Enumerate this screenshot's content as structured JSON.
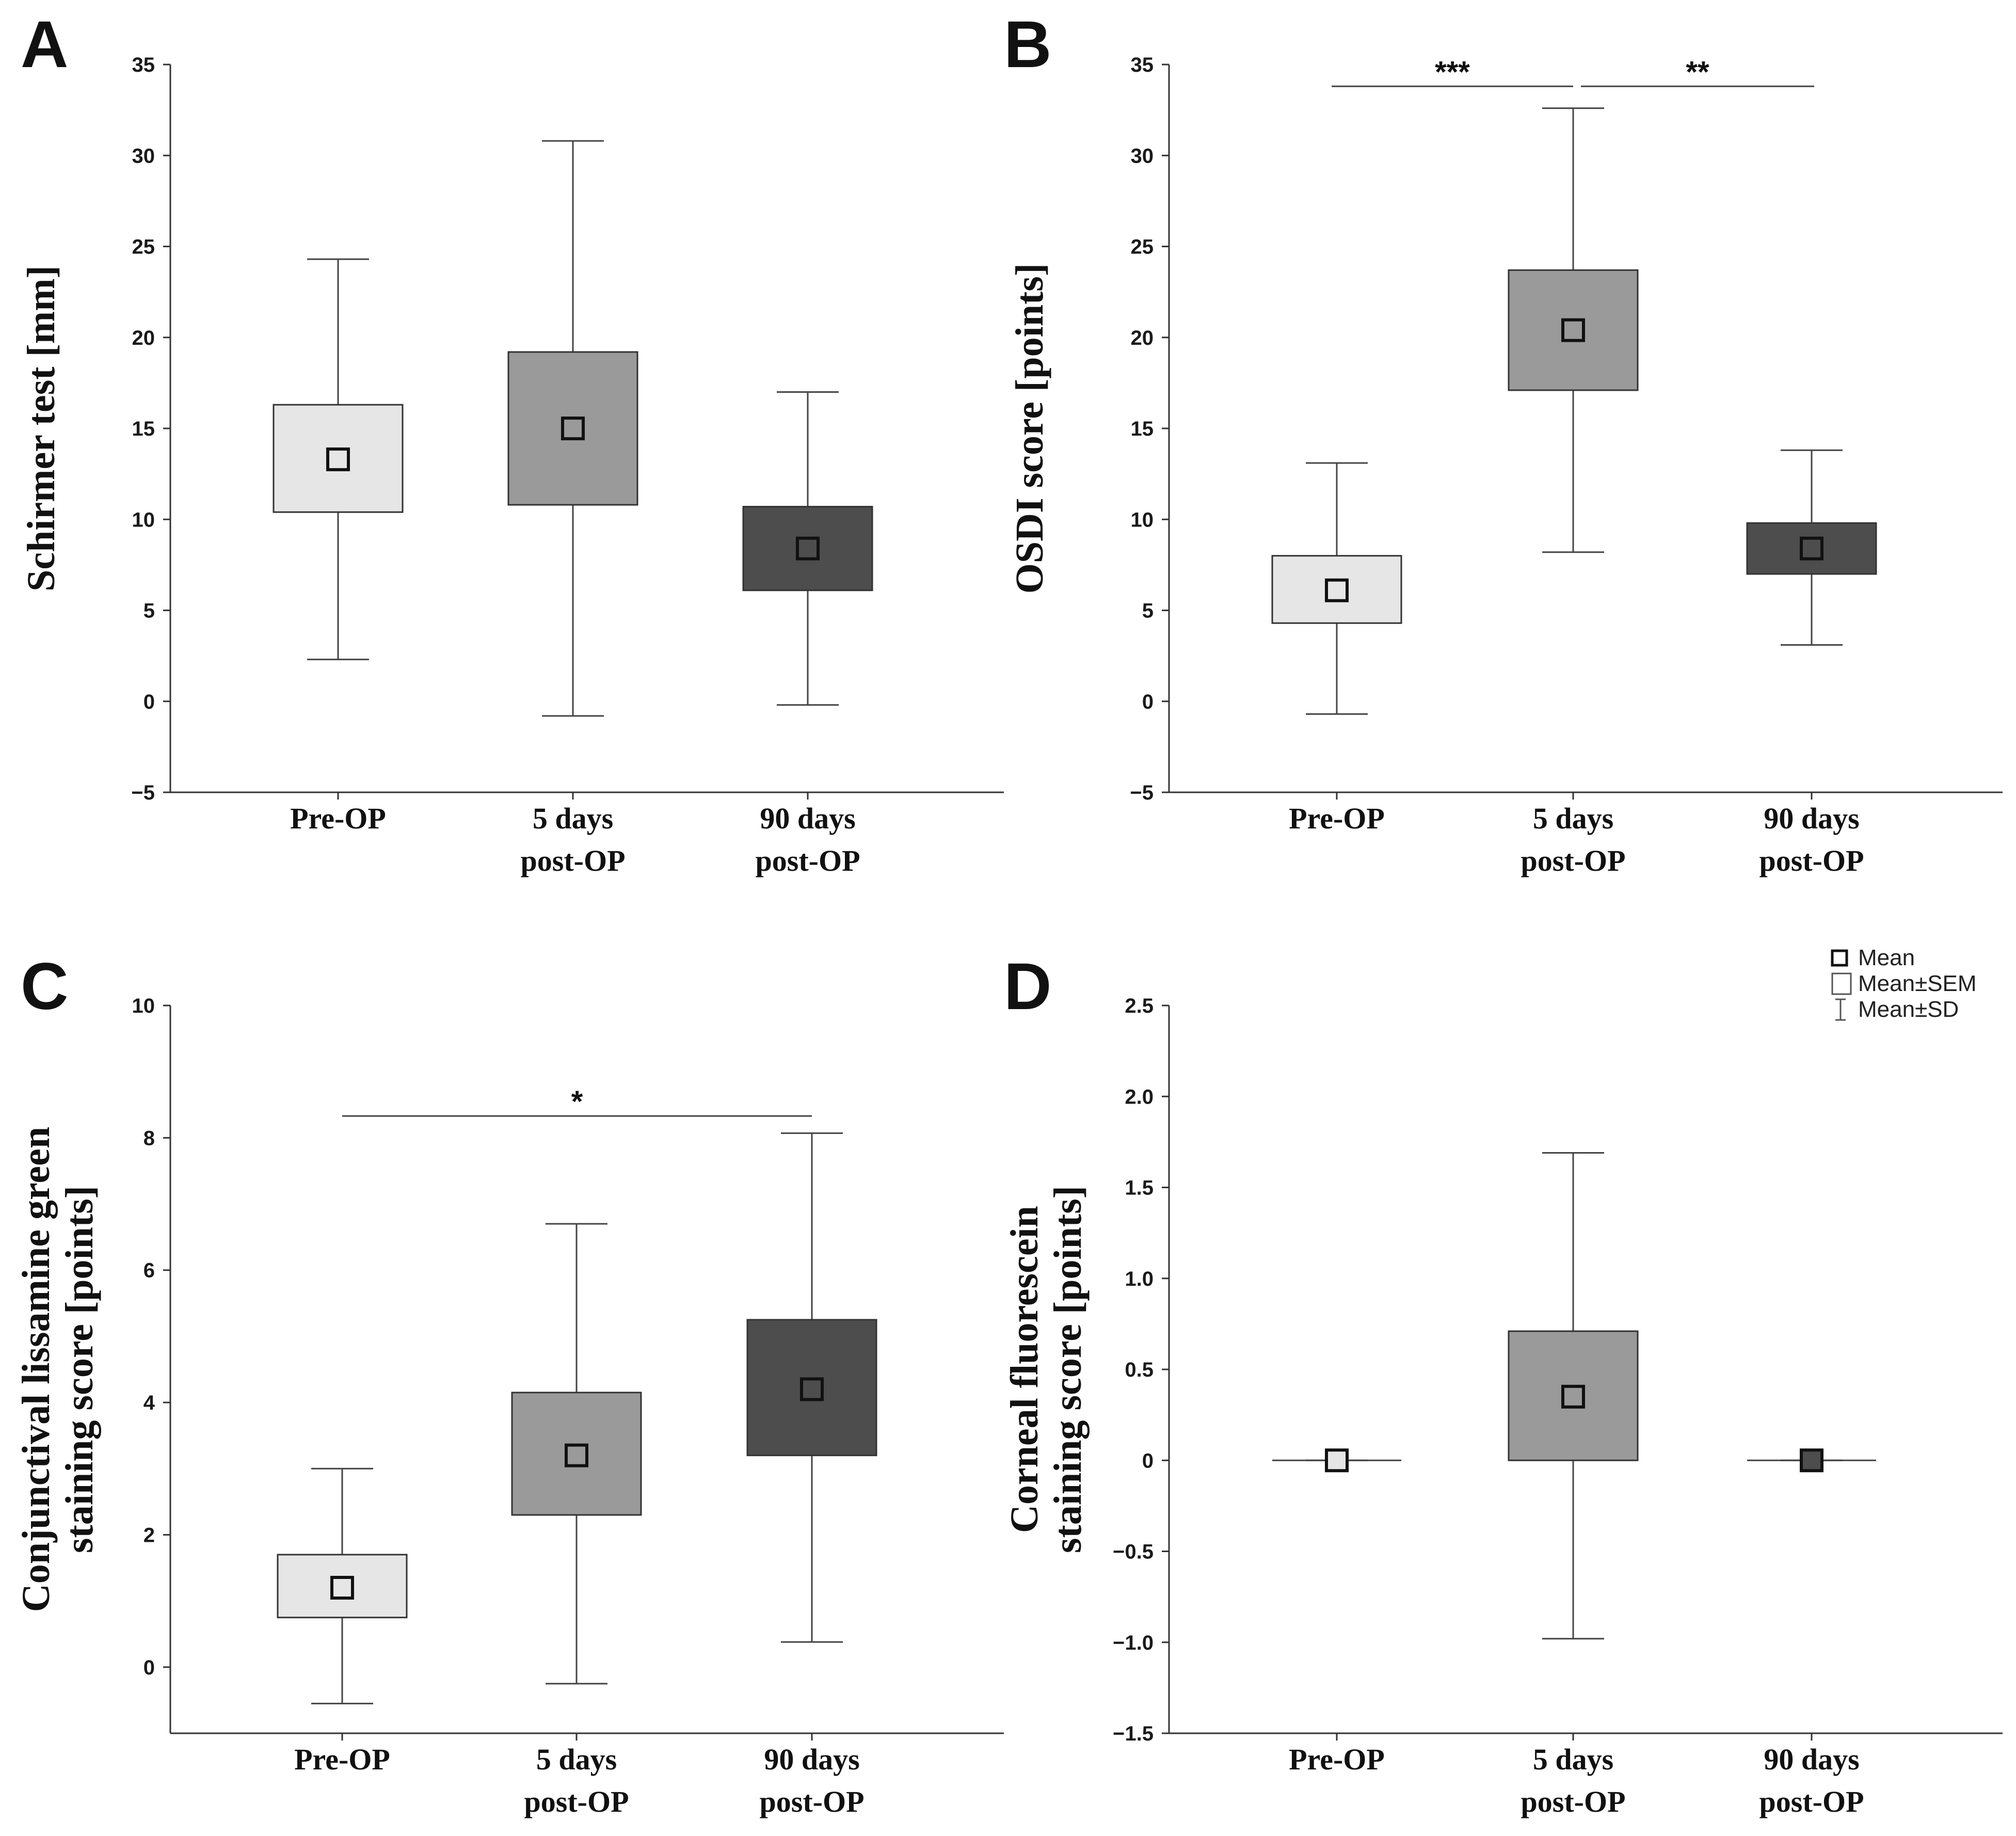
{
  "legend": {
    "items": [
      {
        "label": "Mean",
        "symbol": "mean"
      },
      {
        "label": "Mean±SEM",
        "symbol": "sem"
      },
      {
        "label": "Mean±SD",
        "symbol": "sd"
      }
    ]
  },
  "chart_data": [
    {
      "panel": "A",
      "type": "box",
      "ylabel": [
        "Schirmer test [mm]"
      ],
      "ylim": [
        -5,
        35
      ],
      "yticks": [
        -5,
        0,
        5,
        10,
        15,
        20,
        25,
        30,
        35
      ],
      "ytick_labels": [
        "−5",
        "0",
        "5",
        "10",
        "15",
        "20",
        "25",
        "30",
        "35"
      ],
      "categories": [
        [
          "Pre-OP"
        ],
        [
          "5 days",
          "post-OP"
        ],
        [
          "90 days",
          "post-OP"
        ]
      ],
      "colors": [
        "#e6e6e6",
        "#9a9a9a",
        "#4d4d4d"
      ],
      "series": [
        {
          "mean": 13.3,
          "sem_low": 10.4,
          "sem_high": 16.3,
          "sd_low": 2.3,
          "sd_high": 24.3
        },
        {
          "mean": 15.0,
          "sem_low": 10.8,
          "sem_high": 19.2,
          "sd_low": -0.8,
          "sd_high": 30.8
        },
        {
          "mean": 8.4,
          "sem_low": 6.1,
          "sem_high": 10.7,
          "sd_low": -0.2,
          "sd_high": 17.0
        }
      ],
      "significance": []
    },
    {
      "panel": "B",
      "type": "box",
      "ylabel": [
        "OSDI score [points]"
      ],
      "ylim": [
        -5,
        35
      ],
      "yticks": [
        -5,
        0,
        5,
        10,
        15,
        20,
        25,
        30,
        35
      ],
      "ytick_labels": [
        "−5",
        "0",
        "5",
        "10",
        "15",
        "20",
        "25",
        "30",
        "35"
      ],
      "categories": [
        [
          "Pre-OP"
        ],
        [
          "5 days",
          "post-OP"
        ],
        [
          "90 days",
          "post-OP"
        ]
      ],
      "colors": [
        "#e6e6e6",
        "#9a9a9a",
        "#4d4d4d"
      ],
      "series": [
        {
          "mean": 6.1,
          "sem_low": 4.3,
          "sem_high": 8.0,
          "sd_low": -0.7,
          "sd_high": 13.1
        },
        {
          "mean": 20.4,
          "sem_low": 17.1,
          "sem_high": 23.7,
          "sd_low": 8.2,
          "sd_high": 32.6
        },
        {
          "mean": 8.4,
          "sem_low": 7.0,
          "sem_high": 9.8,
          "sd_low": 3.1,
          "sd_high": 13.8
        }
      ],
      "significance": [
        {
          "from": 0,
          "to": 1,
          "y": 33.8,
          "label": "***"
        },
        {
          "from": 1,
          "to": 2,
          "y": 33.8,
          "label": "**"
        }
      ]
    },
    {
      "panel": "C",
      "type": "box",
      "ylabel": [
        "Conjunctival lissamine green",
        "staining score  [points]"
      ],
      "ylim": [
        -1,
        10
      ],
      "yticks": [
        0,
        2,
        4,
        6,
        8,
        10
      ],
      "ytick_labels": [
        "0",
        "2",
        "4",
        "6",
        "8",
        "10"
      ],
      "categories": [
        [
          "Pre-OP"
        ],
        [
          "5 days",
          "post-OP"
        ],
        [
          "90 days",
          "post-OP"
        ]
      ],
      "colors": [
        "#e6e6e6",
        "#9a9a9a",
        "#4d4d4d"
      ],
      "series": [
        {
          "mean": 1.2,
          "sem_low": 0.75,
          "sem_high": 1.7,
          "sd_low": -0.55,
          "sd_high": 3.0
        },
        {
          "mean": 3.2,
          "sem_low": 2.3,
          "sem_high": 4.15,
          "sd_low": -0.25,
          "sd_high": 6.7
        },
        {
          "mean": 4.2,
          "sem_low": 3.2,
          "sem_high": 5.25,
          "sd_low": 0.38,
          "sd_high": 8.07
        }
      ],
      "significance": [
        {
          "from": 0,
          "to": 2,
          "y": 8.33,
          "label": "*"
        }
      ]
    },
    {
      "panel": "D",
      "type": "box",
      "ylabel": [
        "Corneal fluorescein",
        "staining score [points]"
      ],
      "ylim": [
        -1.5,
        2.5
      ],
      "yticks": [
        -1.5,
        -1.0,
        -0.5,
        0,
        0.5,
        1.0,
        1.5,
        2.0,
        2.5
      ],
      "ytick_labels": [
        "−1.5",
        "−1.0",
        "−0.5",
        "0",
        "0.5",
        "1.0",
        "1.5",
        "2.0",
        "2.5"
      ],
      "categories": [
        [
          "Pre-OP"
        ],
        [
          "5 days",
          "post-OP"
        ],
        [
          "90 days",
          "post-OP"
        ]
      ],
      "colors": [
        "#e6e6e6",
        "#9a9a9a",
        "#4d4d4d"
      ],
      "series": [
        {
          "mean": 0,
          "sem_low": 0,
          "sem_high": 0,
          "sd_low": 0,
          "sd_high": 0
        },
        {
          "mean": 0.35,
          "sem_low": 0.0,
          "sem_high": 0.71,
          "sd_low": -0.98,
          "sd_high": 1.69
        },
        {
          "mean": 0,
          "sem_low": 0,
          "sem_high": 0,
          "sd_low": 0,
          "sd_high": 0
        }
      ],
      "significance": []
    }
  ]
}
